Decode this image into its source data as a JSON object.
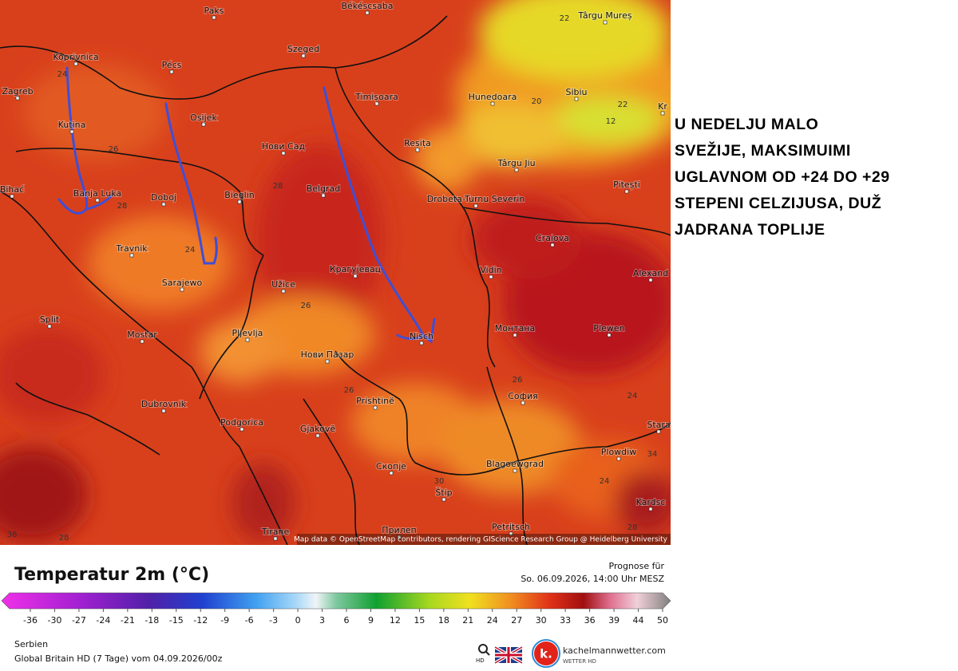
{
  "map": {
    "cities": [
      "Paks",
      "Békéscsaba",
      "Târgu Mureș",
      "Koprivnica",
      "Pécs",
      "Szeged",
      "Zagreb",
      "Osijek",
      "Timișoara",
      "Hunedoara",
      "Sibiu",
      "Kr",
      "Kutina",
      "Нови Сад",
      "Reșița",
      "Târgu Jiu",
      "Pitești",
      "Bihać",
      "Banja Luka",
      "Doboj",
      "Bieglin",
      "Belgrad",
      "Drobeta-Turnu Severin",
      "Craiova",
      "Travnik",
      "Sarajewo",
      "Užice",
      "Крагујевац",
      "Vidin",
      "Alexand",
      "Split",
      "Mostar",
      "Pljevlja",
      "Монтана",
      "Plewen",
      "Nisch",
      "Нови Пазар",
      "Dubrovnik",
      "Prishtinë",
      "София",
      "Podgorica",
      "Gjakovë",
      "Stara",
      "Plowdiw",
      "Скопје",
      "Blagoewgrad",
      "Štip",
      "Kardsc",
      "Petritsch",
      "Tirane",
      "Прилеп"
    ],
    "contour_labels": [
      "22",
      "24",
      "26",
      "28",
      "24",
      "28",
      "26",
      "20",
      "22",
      "12",
      "26",
      "26",
      "24",
      "34",
      "24",
      "28",
      "30",
      "36",
      "28"
    ],
    "attribution": "Map data © OpenStreetMap contributors, rendering GIScience Research Group @ Heidelberg University"
  },
  "caption": [
    "U NEDELJU MALO",
    "SVEŽIJE, MAKSIMUIMI",
    "UGLAVNOM OD +24 DO +29",
    "STEPENI CELZIJUSA, DUŽ",
    "JADRANA TOPLIJE"
  ],
  "legend": {
    "title": "Temperatur 2m (°C)",
    "forecast_label": "Prognose für",
    "forecast_time": "So. 06.09.2026, 14:00 Uhr MESZ",
    "ticks": [
      -36,
      -30,
      -27,
      -24,
      -21,
      -18,
      -15,
      -12,
      -9,
      -6,
      -3,
      0,
      3,
      6,
      9,
      12,
      15,
      18,
      21,
      24,
      27,
      30,
      33,
      36,
      39,
      44,
      50
    ]
  },
  "footer": {
    "region": "Serbien",
    "model": "Global Britain HD (7 Tage) vom  04.09.2026/00z",
    "search_label": "HD",
    "brand": "kachelmannwetter.com",
    "brand_sub": "WETTER HD"
  }
}
